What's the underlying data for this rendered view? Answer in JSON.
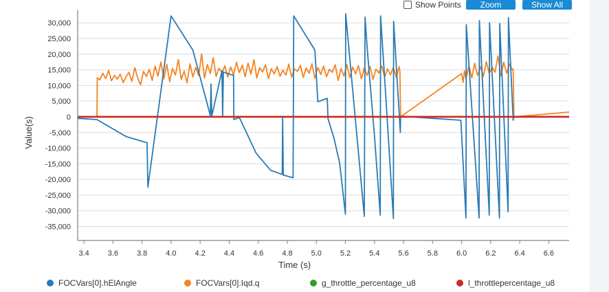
{
  "controls": {
    "show_points_label": "Show Points",
    "show_points_checked": false,
    "zoom_label": "Zoom",
    "show_all_label": "Show All",
    "button_color": "#1a8ad4"
  },
  "chart_data": {
    "type": "line",
    "xlabel": "Time (s)",
    "ylabel": "Value(s)",
    "xlim": [
      3.357,
      6.74
    ],
    "ylim": [
      -39500,
      34000
    ],
    "xticks": [
      3.4,
      3.6,
      3.8,
      4.0,
      4.2,
      4.4,
      4.6,
      4.8,
      5.0,
      5.2,
      5.4,
      5.6,
      5.8,
      6.0,
      6.2,
      6.4,
      6.6
    ],
    "yticks": [
      30000,
      25000,
      20000,
      15000,
      10000,
      5000,
      0,
      -5000,
      -10000,
      -15000,
      -20000,
      -25000,
      -30000,
      -35000
    ],
    "ytick_labels": [
      "30,000",
      "25,000",
      "20,000",
      "15,000",
      "10,000",
      "5,000",
      "0",
      "-5,000",
      "-10,000",
      "-15,000",
      "-20,000",
      "-25,000",
      "-30,000",
      "-35,000"
    ],
    "xtick_labels": [
      "3.4",
      "3.6",
      "3.8",
      "4.0",
      "4.2",
      "4.4",
      "4.6",
      "4.8",
      "5.0",
      "5.2",
      "5.4",
      "5.6",
      "5.8",
      "6.0",
      "6.2",
      "6.4",
      "6.6"
    ],
    "grid": true,
    "legend": "bottom",
    "series": [
      {
        "name": "FOCVars[0].hElAngle",
        "color": "#2a7ab5",
        "points": [
          [
            3.357,
            -500
          ],
          [
            3.49,
            -900
          ],
          [
            3.69,
            -6300
          ],
          [
            3.835,
            -8300
          ],
          [
            3.84,
            -22500
          ],
          [
            4.0,
            32200
          ],
          [
            4.15,
            21300
          ],
          [
            4.27,
            400
          ],
          [
            4.275,
            10500
          ],
          [
            4.28,
            200
          ],
          [
            4.35,
            14700
          ],
          [
            4.355,
            0
          ],
          [
            4.36,
            14300
          ],
          [
            4.43,
            13200
          ],
          [
            4.432,
            -900
          ],
          [
            4.47,
            -200
          ],
          [
            4.585,
            -11600
          ],
          [
            4.685,
            -17100
          ],
          [
            4.765,
            -18400
          ],
          [
            4.768,
            0
          ],
          [
            4.772,
            -18600
          ],
          [
            4.84,
            -19500
          ],
          [
            4.844,
            32200
          ],
          [
            4.99,
            21300
          ],
          [
            5.01,
            4800
          ],
          [
            5.075,
            5900
          ],
          [
            5.08,
            -600
          ],
          [
            5.12,
            -6600
          ],
          [
            5.16,
            -14700
          ],
          [
            5.2,
            -31100
          ],
          [
            5.202,
            32900
          ],
          [
            5.33,
            -31800
          ],
          [
            5.335,
            31800
          ],
          [
            5.35,
            21900
          ],
          [
            5.4,
            -6100
          ],
          [
            5.44,
            -31400
          ],
          [
            5.442,
            32200
          ],
          [
            5.48,
            5000
          ],
          [
            5.53,
            -32500
          ],
          [
            5.532,
            30500
          ],
          [
            5.578,
            -5000
          ],
          [
            5.58,
            200
          ],
          [
            5.995,
            -1100
          ],
          [
            6.03,
            -32300
          ],
          [
            6.032,
            29400
          ],
          [
            6.12,
            -32300
          ],
          [
            6.122,
            30700
          ],
          [
            6.19,
            -31400
          ],
          [
            6.192,
            30000
          ],
          [
            6.26,
            -32300
          ],
          [
            6.262,
            29800
          ],
          [
            6.32,
            -30300
          ],
          [
            6.322,
            31600
          ],
          [
            6.355,
            -1100
          ],
          [
            6.36,
            0
          ],
          [
            6.74,
            0
          ]
        ]
      },
      {
        "name": "FOCVars[0].Iqd.q",
        "color": "#f5831f",
        "points": [
          [
            3.357,
            0
          ],
          [
            3.49,
            0
          ],
          [
            3.492,
            12500
          ],
          [
            3.51,
            11800
          ],
          [
            3.53,
            13900
          ],
          [
            3.55,
            12200
          ],
          [
            3.57,
            14800
          ],
          [
            3.59,
            11500
          ],
          [
            3.61,
            13200
          ],
          [
            3.63,
            12000
          ],
          [
            3.65,
            13600
          ],
          [
            3.67,
            10900
          ],
          [
            3.69,
            12800
          ],
          [
            3.71,
            14200
          ],
          [
            3.73,
            11300
          ],
          [
            3.75,
            15700
          ],
          [
            3.77,
            12400
          ],
          [
            3.79,
            10200
          ],
          [
            3.81,
            14500
          ],
          [
            3.83,
            12900
          ],
          [
            3.85,
            15100
          ],
          [
            3.87,
            11600
          ],
          [
            3.89,
            16200
          ],
          [
            3.91,
            13000
          ],
          [
            3.93,
            17500
          ],
          [
            3.95,
            12100
          ],
          [
            3.97,
            16800
          ],
          [
            3.99,
            11200
          ],
          [
            4.01,
            15400
          ],
          [
            4.03,
            13300
          ],
          [
            4.05,
            18300
          ],
          [
            4.07,
            11900
          ],
          [
            4.09,
            14600
          ],
          [
            4.11,
            10800
          ],
          [
            4.13,
            16900
          ],
          [
            4.15,
            12700
          ],
          [
            4.17,
            15800
          ],
          [
            4.19,
            13100
          ],
          [
            4.21,
            20100
          ],
          [
            4.23,
            12300
          ],
          [
            4.25,
            16700
          ],
          [
            4.27,
            13800
          ],
          [
            4.29,
            18900
          ],
          [
            4.31,
            12900
          ],
          [
            4.33,
            15500
          ],
          [
            4.35,
            14000
          ],
          [
            4.37,
            16300
          ],
          [
            4.39,
            12600
          ],
          [
            4.41,
            15900
          ],
          [
            4.43,
            13400
          ],
          [
            4.45,
            17400
          ],
          [
            4.47,
            14100
          ],
          [
            4.49,
            16500
          ],
          [
            4.51,
            12800
          ],
          [
            4.53,
            17100
          ],
          [
            4.55,
            13600
          ],
          [
            4.57,
            18200
          ],
          [
            4.59,
            12400
          ],
          [
            4.61,
            15700
          ],
          [
            4.63,
            14300
          ],
          [
            4.65,
            16600
          ],
          [
            4.67,
            12200
          ],
          [
            4.69,
            15300
          ],
          [
            4.71,
            13700
          ],
          [
            4.73,
            16000
          ],
          [
            4.75,
            12900
          ],
          [
            4.77,
            14900
          ],
          [
            4.79,
            13300
          ],
          [
            4.81,
            16800
          ],
          [
            4.83,
            12700
          ],
          [
            4.85,
            15200
          ],
          [
            4.87,
            14500
          ],
          [
            4.89,
            16400
          ],
          [
            4.91,
            12600
          ],
          [
            4.93,
            15600
          ],
          [
            4.95,
            13900
          ],
          [
            4.97,
            16900
          ],
          [
            4.99,
            12300
          ],
          [
            5.01,
            15800
          ],
          [
            5.03,
            13500
          ],
          [
            5.05,
            16200
          ],
          [
            5.07,
            12800
          ],
          [
            5.09,
            15100
          ],
          [
            5.11,
            14200
          ],
          [
            5.13,
            16600
          ],
          [
            5.15,
            11600
          ],
          [
            5.17,
            15400
          ],
          [
            5.19,
            13000
          ],
          [
            5.21,
            16700
          ],
          [
            5.23,
            12500
          ],
          [
            5.25,
            15900
          ],
          [
            5.27,
            13700
          ],
          [
            5.29,
            16300
          ],
          [
            5.31,
            12100
          ],
          [
            5.33,
            15600
          ],
          [
            5.35,
            13200
          ],
          [
            5.37,
            16100
          ],
          [
            5.39,
            11900
          ],
          [
            5.41,
            15200
          ],
          [
            5.43,
            14000
          ],
          [
            5.45,
            16200
          ],
          [
            5.47,
            12700
          ],
          [
            5.49,
            15300
          ],
          [
            5.51,
            13400
          ],
          [
            5.53,
            15800
          ],
          [
            5.55,
            12600
          ],
          [
            5.57,
            16000
          ],
          [
            5.575,
            14500
          ],
          [
            5.58,
            0
          ],
          [
            6.0,
            13800
          ],
          [
            6.01,
            11000
          ],
          [
            6.02,
            14700
          ],
          [
            6.03,
            12200
          ],
          [
            6.05,
            16300
          ],
          [
            6.07,
            12400
          ],
          [
            6.09,
            17100
          ],
          [
            6.11,
            13200
          ],
          [
            6.13,
            16000
          ],
          [
            6.15,
            12900
          ],
          [
            6.17,
            17600
          ],
          [
            6.19,
            13800
          ],
          [
            6.21,
            15900
          ],
          [
            6.23,
            14200
          ],
          [
            6.25,
            19400
          ],
          [
            6.27,
            13100
          ],
          [
            6.29,
            17400
          ],
          [
            6.31,
            13900
          ],
          [
            6.33,
            16800
          ],
          [
            6.35,
            15000
          ],
          [
            6.355,
            15200
          ],
          [
            6.36,
            0
          ],
          [
            6.74,
            1500
          ]
        ]
      },
      {
        "name": "g_throttle_percentage_u8",
        "color": "#2ca02c",
        "points": [
          [
            3.357,
            0
          ],
          [
            6.74,
            0
          ]
        ]
      },
      {
        "name": "l_throttlepercentage_u8",
        "color": "#d62728",
        "points": [
          [
            3.357,
            0
          ],
          [
            6.74,
            0
          ]
        ]
      }
    ]
  }
}
